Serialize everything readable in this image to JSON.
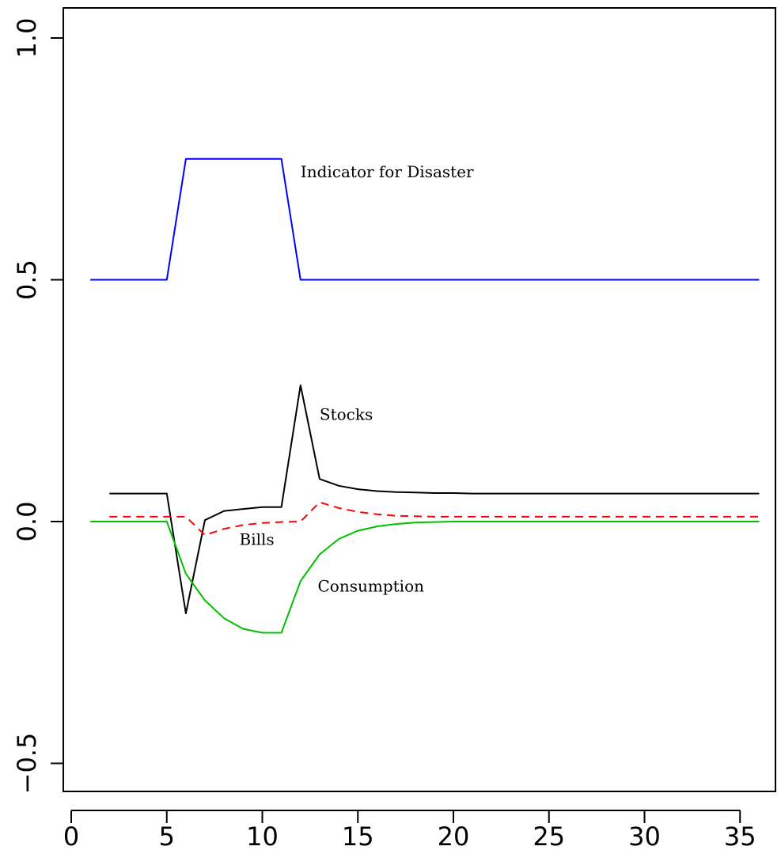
{
  "chart_data": {
    "type": "line",
    "title": "",
    "xlabel": "",
    "ylabel": "",
    "xlim": [
      0,
      36.5
    ],
    "ylim": [
      -0.55,
      1.05
    ],
    "x_ticks": [
      0,
      5,
      10,
      15,
      20,
      25,
      30,
      35
    ],
    "x_tick_labels": [
      "0",
      "5",
      "10",
      "15",
      "20",
      "25",
      "30",
      "35"
    ],
    "y_ticks": [
      -0.5,
      0.0,
      0.5,
      1.0
    ],
    "y_tick_labels": [
      "−0.5",
      "0.0",
      "0.5",
      "1.0"
    ],
    "grid": false,
    "series": [
      {
        "name": "Indicator for Disaster",
        "color": "#0000ff",
        "dash": "solid",
        "x": [
          1,
          2,
          3,
          4,
          5,
          6,
          7,
          8,
          9,
          10,
          11,
          12,
          13,
          14,
          15,
          16,
          17,
          18,
          19,
          20,
          21,
          22,
          23,
          24,
          25,
          26,
          27,
          28,
          29,
          30,
          31,
          32,
          33,
          34,
          35,
          36
        ],
        "y": [
          0.5,
          0.5,
          0.5,
          0.5,
          0.5,
          0.75,
          0.75,
          0.75,
          0.75,
          0.75,
          0.75,
          0.5,
          0.5,
          0.5,
          0.5,
          0.5,
          0.5,
          0.5,
          0.5,
          0.5,
          0.5,
          0.5,
          0.5,
          0.5,
          0.5,
          0.5,
          0.5,
          0.5,
          0.5,
          0.5,
          0.5,
          0.5,
          0.5,
          0.5,
          0.5,
          0.5
        ]
      },
      {
        "name": "Stocks",
        "color": "#000000",
        "dash": "solid",
        "x": [
          2,
          3,
          4,
          5,
          6,
          7,
          8,
          9,
          10,
          11,
          12,
          13,
          14,
          15,
          16,
          17,
          18,
          19,
          20,
          21,
          22,
          23,
          24,
          25,
          26,
          27,
          28,
          29,
          30,
          31,
          32,
          33,
          34,
          35,
          36
        ],
        "y": [
          0.058,
          0.058,
          0.058,
          0.058,
          -0.19,
          0.003,
          0.022,
          0.026,
          0.03,
          0.03,
          0.282,
          0.088,
          0.074,
          0.067,
          0.063,
          0.061,
          0.06,
          0.059,
          0.059,
          0.058,
          0.058,
          0.058,
          0.058,
          0.058,
          0.058,
          0.058,
          0.058,
          0.058,
          0.058,
          0.058,
          0.058,
          0.058,
          0.058,
          0.058,
          0.058
        ]
      },
      {
        "name": "Bills",
        "color": "#ff0000",
        "dash": "dashed",
        "x": [
          2,
          3,
          4,
          5,
          6,
          7,
          8,
          9,
          10,
          11,
          12,
          13,
          14,
          15,
          16,
          17,
          18,
          19,
          20,
          21,
          22,
          23,
          24,
          25,
          26,
          27,
          28,
          29,
          30,
          31,
          32,
          33,
          34,
          35,
          36
        ],
        "y": [
          0.01,
          0.01,
          0.01,
          0.01,
          0.01,
          -0.028,
          -0.015,
          -0.007,
          -0.003,
          -0.001,
          0.0,
          0.04,
          0.028,
          0.02,
          0.015,
          0.012,
          0.011,
          0.01,
          0.01,
          0.01,
          0.01,
          0.01,
          0.01,
          0.01,
          0.01,
          0.01,
          0.01,
          0.01,
          0.01,
          0.01,
          0.01,
          0.01,
          0.01,
          0.01,
          0.01
        ]
      },
      {
        "name": "Consumption",
        "color": "#00c000",
        "dash": "solid",
        "x": [
          1,
          2,
          3,
          4,
          5,
          6,
          7,
          8,
          9,
          10,
          11,
          12,
          13,
          14,
          15,
          16,
          17,
          18,
          19,
          20,
          21,
          22,
          23,
          24,
          25,
          26,
          27,
          28,
          29,
          30,
          31,
          32,
          33,
          34,
          35,
          36
        ],
        "y": [
          0.0,
          0.0,
          0.0,
          0.0,
          0.0,
          -0.108,
          -0.163,
          -0.2,
          -0.222,
          -0.23,
          -0.23,
          -0.123,
          -0.068,
          -0.036,
          -0.019,
          -0.01,
          -0.005,
          -0.002,
          -0.001,
          0.0,
          0.0,
          0.0,
          0.0,
          0.0,
          0.0,
          0.0,
          0.0,
          0.0,
          0.0,
          0.0,
          0.0,
          0.0,
          0.0,
          0.0,
          0.0,
          0.0
        ]
      }
    ],
    "annotations": [
      {
        "text": "Indicator for Disaster",
        "x": 12,
        "y": 0.712
      },
      {
        "text": "Stocks",
        "x": 13,
        "y": 0.21
      },
      {
        "text": "Bills",
        "x": 8.8,
        "y": -0.048
      },
      {
        "text": "Consumption",
        "x": 12.9,
        "y": -0.145
      }
    ]
  }
}
